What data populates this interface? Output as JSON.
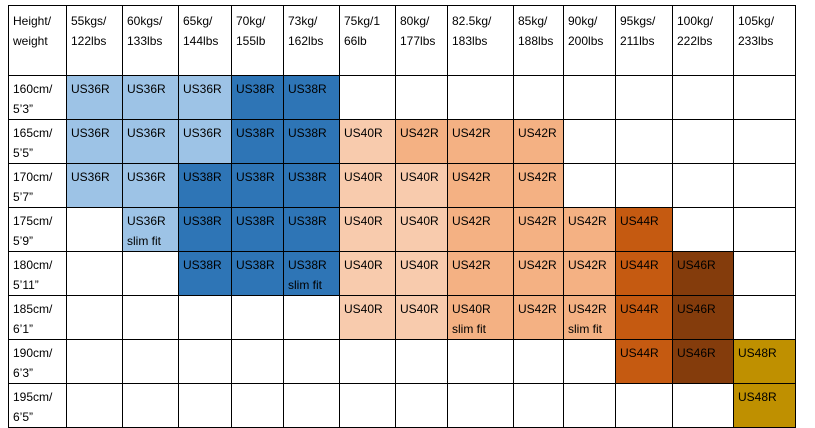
{
  "table": {
    "header": [
      "Height/\nweight",
      "55kgs/\n122lbs",
      "60kgs/\n133lbs",
      "65kg/\n144lbs",
      "70kg/\n155lb",
      "73kg/\n162lbs",
      "75kg/1\n66lb",
      "80kg/\n177lbs",
      "82.5kg/\n183lbs",
      "85kg/\n188lbs",
      "90kg/\n200lbs",
      "95kgs/\n211lbs",
      "100kg/\n222lbs",
      "105kg/\n233lbs"
    ],
    "rows": [
      {
        "label": "160cm/\n5’3”",
        "cells": [
          "US36R",
          "US36R",
          "US36R",
          "US38R",
          "US38R",
          null,
          null,
          null,
          null,
          null,
          null,
          null,
          null
        ],
        "colors": [
          "#9dc3e6",
          "#9dc3e6",
          "#9dc3e6",
          "#2e75b6",
          "#2e75b6",
          null,
          null,
          null,
          null,
          null,
          null,
          null,
          null
        ]
      },
      {
        "label": "165cm/\n5’5”",
        "cells": [
          "US36R",
          "US36R",
          "US36R",
          "US38R",
          "US38R",
          "US40R",
          "US42R",
          "US42R",
          "US42R",
          null,
          null,
          null,
          null
        ],
        "colors": [
          "#9dc3e6",
          "#9dc3e6",
          "#9dc3e6",
          "#2e75b6",
          "#2e75b6",
          "#f8cbad",
          "#f4b183",
          "#f4b183",
          "#f4b183",
          null,
          null,
          null,
          null
        ]
      },
      {
        "label": "170cm/\n5’7”",
        "cells": [
          "US36R",
          "US36R",
          "US38R",
          "US38R",
          "US38R",
          "US40R",
          "US40R",
          "US42R",
          "US42R",
          null,
          null,
          null,
          null
        ],
        "colors": [
          "#9dc3e6",
          "#9dc3e6",
          "#2e75b6",
          "#2e75b6",
          "#2e75b6",
          "#f8cbad",
          "#f8cbad",
          "#f4b183",
          "#f4b183",
          null,
          null,
          null,
          null
        ]
      },
      {
        "label": "175cm/\n5’9”",
        "cells": [
          null,
          "US36R\nslim fit",
          "US38R",
          "US38R",
          "US38R",
          "US40R",
          "US40R",
          "US42R",
          "US42R",
          "US42R",
          "US44R",
          null,
          null
        ],
        "colors": [
          null,
          "#9dc3e6",
          "#2e75b6",
          "#2e75b6",
          "#2e75b6",
          "#f8cbad",
          "#f8cbad",
          "#f4b183",
          "#f4b183",
          "#f4b183",
          "#c55a11",
          null,
          null
        ]
      },
      {
        "label": "180cm/\n5’11”",
        "cells": [
          null,
          null,
          "US38R",
          "US38R",
          "US38R\nslim fit",
          "US40R",
          "US40R",
          "US42R",
          "US42R",
          "US42R",
          "US44R",
          "US46R",
          null
        ],
        "colors": [
          null,
          null,
          "#2e75b6",
          "#2e75b6",
          "#2e75b6",
          "#f8cbad",
          "#f8cbad",
          "#f4b183",
          "#f4b183",
          "#f4b183",
          "#c55a11",
          "#843c0c",
          null
        ]
      },
      {
        "label": "185cm/\n6’1”",
        "cells": [
          null,
          null,
          null,
          null,
          null,
          "US40R",
          "US40R",
          "US40R\nslim fit",
          "US42R",
          "US42R\nslim fit",
          "US44R",
          "US46R",
          null
        ],
        "colors": [
          null,
          null,
          null,
          null,
          null,
          "#f8cbad",
          "#f8cbad",
          "#f4b183",
          "#f4b183",
          "#f4b183",
          "#c55a11",
          "#843c0c",
          null
        ]
      },
      {
        "label": "190cm/\n6’3”",
        "cells": [
          null,
          null,
          null,
          null,
          null,
          null,
          null,
          null,
          null,
          null,
          "US44R",
          "US46R",
          "US48R"
        ],
        "colors": [
          null,
          null,
          null,
          null,
          null,
          null,
          null,
          null,
          null,
          null,
          "#c55a11",
          "#843c0c",
          "#bf9000"
        ]
      },
      {
        "label": "195cm/\n6’5”",
        "cells": [
          null,
          null,
          null,
          null,
          null,
          null,
          null,
          null,
          null,
          null,
          null,
          null,
          "US48R"
        ],
        "colors": [
          null,
          null,
          null,
          null,
          null,
          null,
          null,
          null,
          null,
          null,
          null,
          null,
          "#bf9000"
        ]
      }
    ]
  }
}
